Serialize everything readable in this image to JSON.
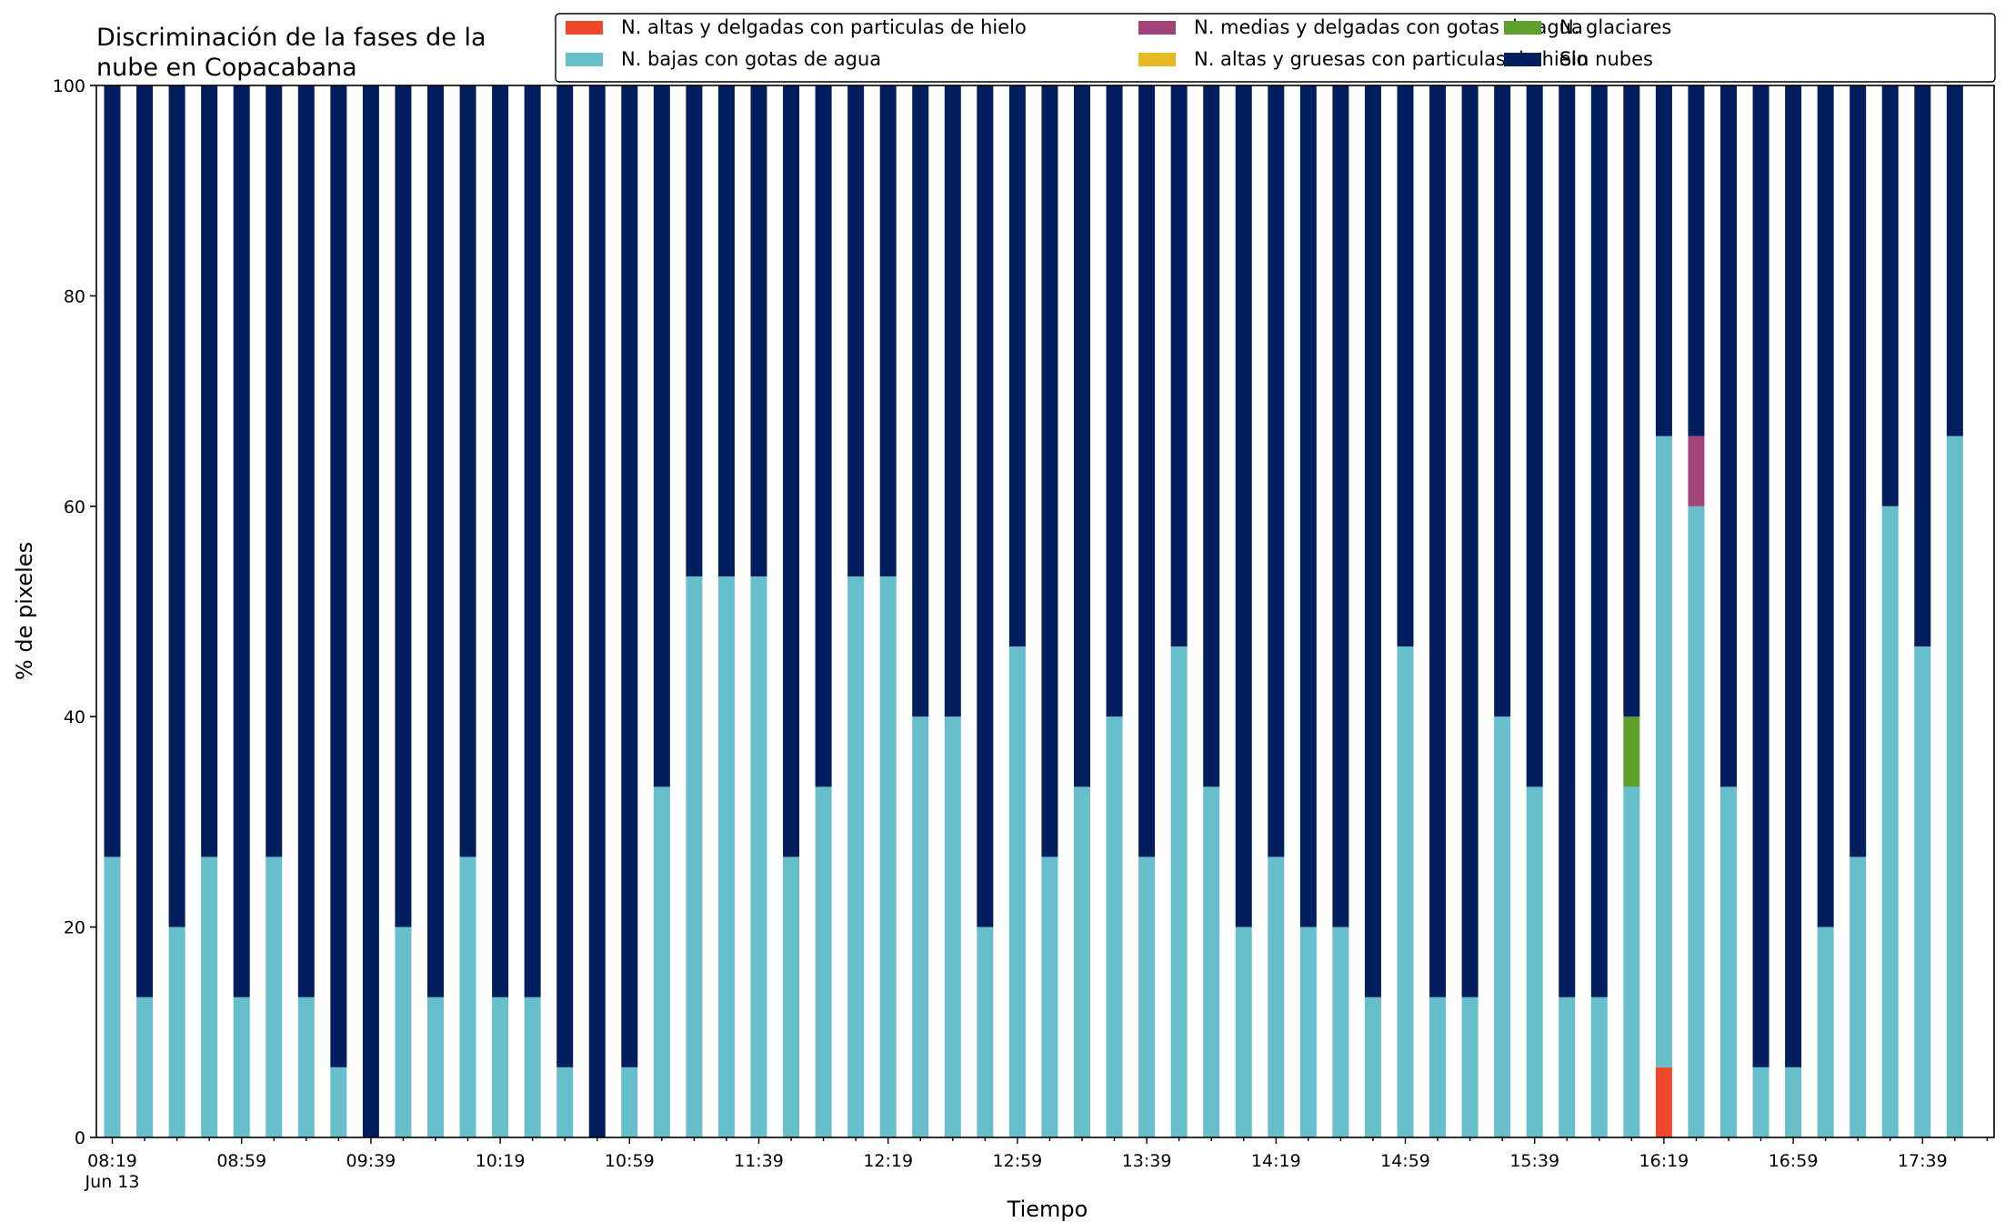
{
  "chart_data": {
    "type": "bar",
    "stacked": true,
    "title": [
      "Discriminación de la fases de la",
      "nube en Copacabana"
    ],
    "xlabel": "Tiempo",
    "ylabel": "% de pixeles",
    "ylim": [
      0,
      100
    ],
    "yticks": [
      "0",
      "20",
      "40",
      "60",
      "80",
      "100"
    ],
    "x_first_time": "08:19",
    "x_first_date": "Jun 13",
    "x_step_minutes": 10,
    "categories": [
      "08:19",
      "08:29",
      "08:39",
      "08:49",
      "08:59",
      "09:09",
      "09:19",
      "09:29",
      "09:39",
      "09:49",
      "09:59",
      "10:09",
      "10:19",
      "10:29",
      "10:39",
      "10:49",
      "10:59",
      "11:09",
      "11:19",
      "11:29",
      "11:39",
      "11:49",
      "11:59",
      "12:09",
      "12:19",
      "12:29",
      "12:39",
      "12:49",
      "12:59",
      "13:09",
      "13:19",
      "13:29",
      "13:39",
      "13:49",
      "13:59",
      "14:09",
      "14:19",
      "14:29",
      "14:39",
      "14:49",
      "14:59",
      "15:09",
      "15:19",
      "15:29",
      "15:39",
      "15:49",
      "15:59",
      "16:09",
      "16:19",
      "16:29",
      "16:39",
      "16:49",
      "16:59",
      "17:09",
      "17:19",
      "17:29",
      "17:39",
      "17:49"
    ],
    "x_tick_labels": [
      "08:19",
      "08:59",
      "09:39",
      "10:19",
      "10:59",
      "11:39",
      "12:19",
      "12:59",
      "13:39",
      "14:19",
      "14:59",
      "15:39",
      "16:19",
      "16:59",
      "17:39"
    ],
    "legend_placement": "top-right",
    "legend_columns": 3,
    "legend_order": [
      0,
      2,
      4,
      1,
      3,
      5
    ],
    "series": [
      {
        "name": "N. altas y delgadas con particulas de hielo",
        "color": "#f0482a",
        "values": [
          0,
          0,
          0,
          0,
          0,
          0,
          0,
          0,
          0,
          0,
          0,
          0,
          0,
          0,
          0,
          0,
          0,
          0,
          0,
          0,
          0,
          0,
          0,
          0,
          0,
          0,
          0,
          0,
          0,
          0,
          0,
          0,
          0,
          0,
          0,
          0,
          0,
          0,
          0,
          0,
          0,
          0,
          0,
          0,
          0,
          0,
          0,
          0,
          6.67,
          0,
          0,
          0,
          0,
          0,
          0,
          0,
          0,
          0
        ]
      },
      {
        "name": "N. altas y gruesas con particulas de hielo",
        "color": "#e7b923",
        "values": [
          0,
          0,
          0,
          0,
          0,
          0,
          0,
          0,
          0,
          0,
          0,
          0,
          0,
          0,
          0,
          0,
          0,
          0,
          0,
          0,
          0,
          0,
          0,
          0,
          0,
          0,
          0,
          0,
          0,
          0,
          0,
          0,
          0,
          0,
          0,
          0,
          0,
          0,
          0,
          0,
          0,
          0,
          0,
          0,
          0,
          0,
          0,
          0,
          0,
          0,
          0,
          0,
          0,
          0,
          0,
          0,
          0,
          0
        ]
      },
      {
        "name": "N. bajas con gotas de agua",
        "color": "#66bfcb",
        "values": [
          26.67,
          13.33,
          20,
          26.67,
          13.33,
          26.67,
          13.33,
          6.67,
          0,
          20,
          13.33,
          26.67,
          13.33,
          13.33,
          6.67,
          0,
          6.67,
          33.33,
          53.33,
          53.33,
          53.33,
          26.67,
          33.33,
          53.33,
          53.33,
          40,
          40,
          20,
          46.67,
          26.67,
          33.33,
          40,
          26.67,
          46.67,
          33.33,
          20,
          26.67,
          20,
          20,
          13.33,
          46.67,
          13.33,
          13.33,
          40,
          33.33,
          13.33,
          13.33,
          33.33,
          60,
          60,
          33.33,
          6.67,
          6.67,
          20,
          26.67,
          60,
          46.67,
          66.67
        ]
      },
      {
        "name": "N. glaciares",
        "color": "#5ea02e",
        "values": [
          0,
          0,
          0,
          0,
          0,
          0,
          0,
          0,
          0,
          0,
          0,
          0,
          0,
          0,
          0,
          0,
          0,
          0,
          0,
          0,
          0,
          0,
          0,
          0,
          0,
          0,
          0,
          0,
          0,
          0,
          0,
          0,
          0,
          0,
          0,
          0,
          0,
          0,
          0,
          0,
          0,
          0,
          0,
          0,
          0,
          0,
          0,
          6.67,
          0,
          0,
          0,
          0,
          0,
          0,
          0,
          0,
          0,
          0
        ]
      },
      {
        "name": "N. medias y delgadas con gotas de agua",
        "color": "#a2447a",
        "values": [
          0,
          0,
          0,
          0,
          0,
          0,
          0,
          0,
          0,
          0,
          0,
          0,
          0,
          0,
          0,
          0,
          0,
          0,
          0,
          0,
          0,
          0,
          0,
          0,
          0,
          0,
          0,
          0,
          0,
          0,
          0,
          0,
          0,
          0,
          0,
          0,
          0,
          0,
          0,
          0,
          0,
          0,
          0,
          0,
          0,
          0,
          0,
          0,
          0,
          6.67,
          0,
          0,
          0,
          0,
          0,
          0,
          0,
          0
        ]
      },
      {
        "name": "Sin nubes",
        "color": "#021e5e",
        "values": [
          73.33,
          86.67,
          80,
          73.33,
          86.67,
          73.33,
          86.67,
          93.33,
          100,
          80,
          86.67,
          73.33,
          86.67,
          86.67,
          93.33,
          100,
          93.33,
          66.67,
          46.67,
          46.67,
          46.67,
          73.33,
          66.67,
          46.67,
          46.67,
          60,
          60,
          80,
          53.33,
          73.33,
          66.67,
          60,
          73.33,
          53.33,
          66.67,
          80,
          73.33,
          80,
          80,
          86.67,
          53.33,
          86.67,
          86.67,
          60,
          66.67,
          86.67,
          86.67,
          60,
          33.33,
          33.33,
          66.67,
          93.33,
          93.33,
          80,
          73.33,
          40,
          53.33,
          33.33
        ]
      }
    ]
  }
}
